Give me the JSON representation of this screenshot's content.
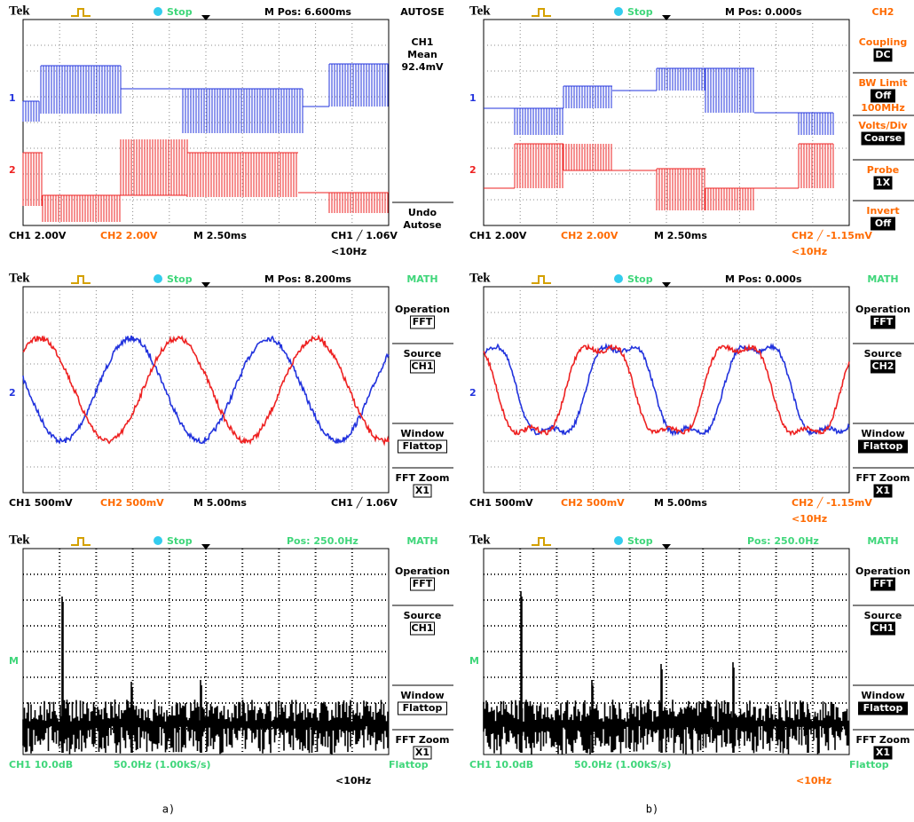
{
  "panels": [
    {
      "brand": "Tek",
      "status": "Stop",
      "position": "M Pos: 6.600ms",
      "menu_title": "AUTOSE",
      "menu": [
        [
          "CH1",
          "Mean",
          "92.4mV"
        ],
        [
          "Undo",
          "Autose"
        ]
      ],
      "markers": [
        "1",
        "2"
      ],
      "status_line": [
        "CH1  2.00V",
        "CH2  2.00V",
        "M 2.50ms",
        "CH1 ╱ 1.06V",
        "<10Hz"
      ]
    },
    {
      "brand": "Tek",
      "status": "Stop",
      "position": "M Pos: 0.000s",
      "menu_title": "CH2",
      "menu": [
        [
          "Coupling",
          "DC"
        ],
        [
          "BW Limit",
          "Off",
          "100MHz"
        ],
        [
          "Volts/Div",
          "Coarse"
        ],
        [
          "Probe",
          "1X"
        ],
        [
          "Invert",
          "Off"
        ]
      ],
      "markers": [
        "1",
        "2"
      ],
      "status_line": [
        "CH1  2.00V",
        "CH2  2.00V",
        "M 2.50ms",
        "CH2 ╱ -1.15mV",
        "<10Hz"
      ]
    },
    {
      "brand": "Tek",
      "status": "Stop",
      "position": "M Pos: 8.200ms",
      "menu_title": "MATH",
      "menu": [
        [
          "Operation",
          "FFT"
        ],
        [
          "Source",
          "CH1"
        ],
        [
          "Window",
          "Flattop"
        ],
        [
          "FFT Zoom",
          "X1"
        ]
      ],
      "markers": [
        "2"
      ],
      "status_line": [
        "CH1  500mV",
        "CH2  500mV",
        "M 5.00ms",
        "CH1 ╱ 1.06V"
      ]
    },
    {
      "brand": "Tek",
      "status": "Stop",
      "position": "M Pos: 0.000s",
      "menu_title": "MATH",
      "menu": [
        [
          "Operation",
          "FFT"
        ],
        [
          "Source",
          "CH2"
        ],
        [
          "Window",
          "Flattop"
        ],
        [
          "FFT Zoom",
          "X1"
        ]
      ],
      "markers": [
        "2"
      ],
      "status_line": [
        "CH1  500mV",
        "CH2  500mV",
        "M 5.00ms",
        "CH2 ╱ -1.15mV",
        "<10Hz"
      ]
    },
    {
      "brand": "Tek",
      "status": "Stop",
      "position": "Pos: 250.0Hz",
      "menu_title": "MATH",
      "menu": [
        [
          "Operation",
          "FFT"
        ],
        [
          "Source",
          "CH1"
        ],
        [
          "Window",
          "Flattop"
        ],
        [
          "FFT Zoom",
          "X1"
        ]
      ],
      "markers": [
        "M"
      ],
      "status_line": [
        "CH1 10.0dB",
        "50.0Hz (1.00kS/s)",
        "Flattop",
        "<10Hz"
      ]
    },
    {
      "brand": "Tek",
      "status": "Stop",
      "position": "Pos: 250.0Hz",
      "menu_title": "MATH",
      "menu": [
        [
          "Operation",
          "FFT"
        ],
        [
          "Source",
          "CH1"
        ],
        [
          "Window",
          "Flattop"
        ],
        [
          "FFT Zoom",
          "X1"
        ]
      ],
      "markers": [
        "M"
      ],
      "status_line": [
        "CH1 10.0dB",
        "50.0Hz (1.00kS/s)",
        "Flattop",
        "<10Hz"
      ]
    }
  ],
  "captions": [
    "a)",
    "b)"
  ]
}
